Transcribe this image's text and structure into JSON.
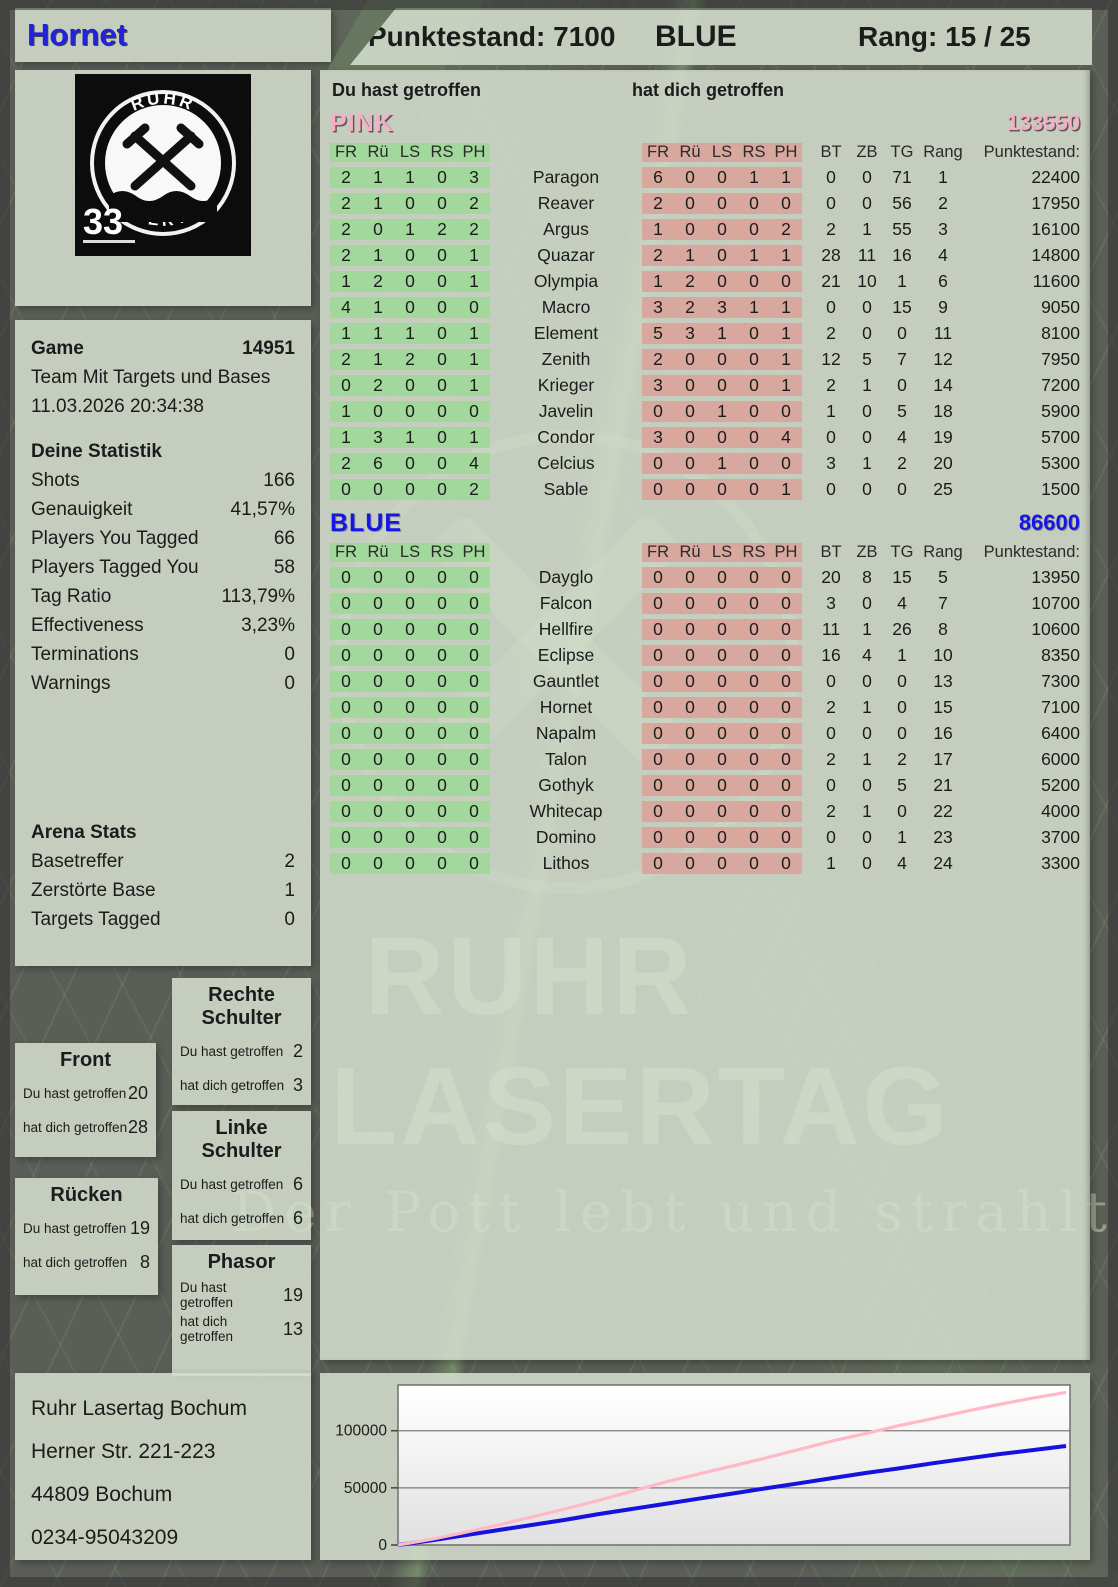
{
  "header": {
    "player": "Hornet",
    "points_label": "Punktestand: 7100",
    "team": "BLUE",
    "rank_label": "Rang: 15 / 25"
  },
  "logo": {
    "arc_top": "RUHR",
    "arc_bottom": "LASERTAG",
    "badge": "33"
  },
  "game": {
    "label": "Game",
    "number": "14951",
    "mode": "Team Mit Targets und Bases",
    "datetime": "11.03.2026 20:34:38"
  },
  "stats": {
    "title": "Deine Statistik",
    "rows": [
      {
        "label": "Shots",
        "value": "166"
      },
      {
        "label": "Genauigkeit",
        "value": "41,57%"
      },
      {
        "label": "Players You Tagged",
        "value": "66"
      },
      {
        "label": "Players Tagged You",
        "value": "58"
      },
      {
        "label": "Tag Ratio",
        "value": "113,79%"
      },
      {
        "label": "Effectiveness",
        "value": "3,23%"
      },
      {
        "label": "Terminations",
        "value": "0"
      },
      {
        "label": "Warnings",
        "value": "0"
      }
    ]
  },
  "arena": {
    "title": "Arena Stats",
    "rows": [
      {
        "label": "Basetreffer",
        "value": "2"
      },
      {
        "label": "Zerstörte Base",
        "value": "1"
      },
      {
        "label": "Targets Tagged",
        "value": "0"
      }
    ]
  },
  "bodypart_labels": {
    "hit": "Du hast getroffen",
    "got": "hat dich getroffen"
  },
  "bodyparts": [
    {
      "title": "Front",
      "hit": "20",
      "got": "28"
    },
    {
      "title": "Rücken",
      "hit": "19",
      "got": "8"
    },
    {
      "title": "Rechte Schulter",
      "hit": "2",
      "got": "3"
    },
    {
      "title": "Linke Schulter",
      "hit": "6",
      "got": "6"
    },
    {
      "title": "Phasor",
      "hit": "19",
      "got": "13"
    }
  ],
  "address": [
    "Ruhr Lasertag Bochum",
    "Herner Str. 221-223",
    "44809 Bochum",
    "0234-95043209"
  ],
  "table": {
    "caption_hit": "Du hast getroffen",
    "caption_got": "hat dich getroffen",
    "col_headers": [
      "FR",
      "Rü",
      "LS",
      "RS",
      "PH"
    ],
    "right_headers": [
      "BT",
      "ZB",
      "TG",
      "Rang",
      "Punktestand:"
    ],
    "teams": [
      {
        "name": "PINK",
        "total": "133550",
        "color_class": "pinkc",
        "rows": [
          {
            "you": [
              2,
              1,
              1,
              0,
              3
            ],
            "name": "Paragon",
            "them": [
              6,
              0,
              0,
              1,
              1
            ],
            "bt": 0,
            "zb": 0,
            "tg": 71,
            "rang": 1,
            "punkte": "22400"
          },
          {
            "you": [
              2,
              1,
              0,
              0,
              2
            ],
            "name": "Reaver",
            "them": [
              2,
              0,
              0,
              0,
              0
            ],
            "bt": 0,
            "zb": 0,
            "tg": 56,
            "rang": 2,
            "punkte": "17950"
          },
          {
            "you": [
              2,
              0,
              1,
              2,
              2
            ],
            "name": "Argus",
            "them": [
              1,
              0,
              0,
              0,
              2
            ],
            "bt": 2,
            "zb": 1,
            "tg": 55,
            "rang": 3,
            "punkte": "16100"
          },
          {
            "you": [
              2,
              1,
              0,
              0,
              1
            ],
            "name": "Quazar",
            "them": [
              2,
              1,
              0,
              1,
              1
            ],
            "bt": 28,
            "zb": 11,
            "tg": 16,
            "rang": 4,
            "punkte": "14800"
          },
          {
            "you": [
              1,
              2,
              0,
              0,
              1
            ],
            "name": "Olympia",
            "them": [
              1,
              2,
              0,
              0,
              0
            ],
            "bt": 21,
            "zb": 10,
            "tg": 1,
            "rang": 6,
            "punkte": "11600"
          },
          {
            "you": [
              4,
              1,
              0,
              0,
              0
            ],
            "name": "Macro",
            "them": [
              3,
              2,
              3,
              1,
              1
            ],
            "bt": 0,
            "zb": 0,
            "tg": 15,
            "rang": 9,
            "punkte": "9050"
          },
          {
            "you": [
              1,
              1,
              1,
              0,
              1
            ],
            "name": "Element",
            "them": [
              5,
              3,
              1,
              0,
              1
            ],
            "bt": 2,
            "zb": 0,
            "tg": 0,
            "rang": 11,
            "punkte": "8100"
          },
          {
            "you": [
              2,
              1,
              2,
              0,
              1
            ],
            "name": "Zenith",
            "them": [
              2,
              0,
              0,
              0,
              1
            ],
            "bt": 12,
            "zb": 5,
            "tg": 7,
            "rang": 12,
            "punkte": "7950"
          },
          {
            "you": [
              0,
              2,
              0,
              0,
              1
            ],
            "name": "Krieger",
            "them": [
              3,
              0,
              0,
              0,
              1
            ],
            "bt": 2,
            "zb": 1,
            "tg": 0,
            "rang": 14,
            "punkte": "7200"
          },
          {
            "you": [
              1,
              0,
              0,
              0,
              0
            ],
            "name": "Javelin",
            "them": [
              0,
              0,
              1,
              0,
              0
            ],
            "bt": 1,
            "zb": 0,
            "tg": 5,
            "rang": 18,
            "punkte": "5900"
          },
          {
            "you": [
              1,
              3,
              1,
              0,
              1
            ],
            "name": "Condor",
            "them": [
              3,
              0,
              0,
              0,
              4
            ],
            "bt": 0,
            "zb": 0,
            "tg": 4,
            "rang": 19,
            "punkte": "5700"
          },
          {
            "you": [
              2,
              6,
              0,
              0,
              4
            ],
            "name": "Celcius",
            "them": [
              0,
              0,
              1,
              0,
              0
            ],
            "bt": 3,
            "zb": 1,
            "tg": 2,
            "rang": 20,
            "punkte": "5300"
          },
          {
            "you": [
              0,
              0,
              0,
              0,
              2
            ],
            "name": "Sable",
            "them": [
              0,
              0,
              0,
              0,
              1
            ],
            "bt": 0,
            "zb": 0,
            "tg": 0,
            "rang": 25,
            "punkte": "1500"
          }
        ]
      },
      {
        "name": "BLUE",
        "total": "86600",
        "color_class": "bluec",
        "rows": [
          {
            "you": [
              0,
              0,
              0,
              0,
              0
            ],
            "name": "Dayglo",
            "them": [
              0,
              0,
              0,
              0,
              0
            ],
            "bt": 20,
            "zb": 8,
            "tg": 15,
            "rang": 5,
            "punkte": "13950"
          },
          {
            "you": [
              0,
              0,
              0,
              0,
              0
            ],
            "name": "Falcon",
            "them": [
              0,
              0,
              0,
              0,
              0
            ],
            "bt": 3,
            "zb": 0,
            "tg": 4,
            "rang": 7,
            "punkte": "10700"
          },
          {
            "you": [
              0,
              0,
              0,
              0,
              0
            ],
            "name": "Hellfire",
            "them": [
              0,
              0,
              0,
              0,
              0
            ],
            "bt": 11,
            "zb": 1,
            "tg": 26,
            "rang": 8,
            "punkte": "10600"
          },
          {
            "you": [
              0,
              0,
              0,
              0,
              0
            ],
            "name": "Eclipse",
            "them": [
              0,
              0,
              0,
              0,
              0
            ],
            "bt": 16,
            "zb": 4,
            "tg": 1,
            "rang": 10,
            "punkte": "8350"
          },
          {
            "you": [
              0,
              0,
              0,
              0,
              0
            ],
            "name": "Gauntlet",
            "them": [
              0,
              0,
              0,
              0,
              0
            ],
            "bt": 0,
            "zb": 0,
            "tg": 0,
            "rang": 13,
            "punkte": "7300"
          },
          {
            "you": [
              0,
              0,
              0,
              0,
              0
            ],
            "name": "Hornet",
            "them": [
              0,
              0,
              0,
              0,
              0
            ],
            "bt": 2,
            "zb": 1,
            "tg": 0,
            "rang": 15,
            "punkte": "7100"
          },
          {
            "you": [
              0,
              0,
              0,
              0,
              0
            ],
            "name": "Napalm",
            "them": [
              0,
              0,
              0,
              0,
              0
            ],
            "bt": 0,
            "zb": 0,
            "tg": 0,
            "rang": 16,
            "punkte": "6400"
          },
          {
            "you": [
              0,
              0,
              0,
              0,
              0
            ],
            "name": "Talon",
            "them": [
              0,
              0,
              0,
              0,
              0
            ],
            "bt": 2,
            "zb": 1,
            "tg": 2,
            "rang": 17,
            "punkte": "6000"
          },
          {
            "you": [
              0,
              0,
              0,
              0,
              0
            ],
            "name": "Gothyk",
            "them": [
              0,
              0,
              0,
              0,
              0
            ],
            "bt": 0,
            "zb": 0,
            "tg": 5,
            "rang": 21,
            "punkte": "5200"
          },
          {
            "you": [
              0,
              0,
              0,
              0,
              0
            ],
            "name": "Whitecap",
            "them": [
              0,
              0,
              0,
              0,
              0
            ],
            "bt": 2,
            "zb": 1,
            "tg": 0,
            "rang": 22,
            "punkte": "4000"
          },
          {
            "you": [
              0,
              0,
              0,
              0,
              0
            ],
            "name": "Domino",
            "them": [
              0,
              0,
              0,
              0,
              0
            ],
            "bt": 0,
            "zb": 0,
            "tg": 1,
            "rang": 23,
            "punkte": "3700"
          },
          {
            "you": [
              0,
              0,
              0,
              0,
              0
            ],
            "name": "Lithos",
            "them": [
              0,
              0,
              0,
              0,
              0
            ],
            "bt": 1,
            "zb": 0,
            "tg": 4,
            "rang": 24,
            "punkte": "3300"
          }
        ]
      }
    ]
  },
  "watermark": {
    "line1": "RUHR",
    "line2": "LASERTAG",
    "slogan": "Der Pott lebt und strahlt"
  },
  "chart_data": {
    "type": "line",
    "title": "",
    "xlabel": "",
    "ylabel": "",
    "ylim": [
      0,
      140000
    ],
    "yticks": [
      0,
      50000,
      100000
    ],
    "grid": true,
    "legend": "none",
    "series": [
      {
        "name": "PINK",
        "color": "#ffb9c6",
        "final": 133550,
        "values": [
          0,
          5000,
          11000,
          17500,
          24500,
          31500,
          39000,
          47000,
          55000,
          62000,
          69000,
          76000,
          83500,
          91000,
          97500,
          104500,
          110500,
          117000,
          123000,
          128500,
          133550
        ]
      },
      {
        "name": "BLUE",
        "color": "#1512dd",
        "final": 86600,
        "values": [
          0,
          4000,
          8500,
          13000,
          17500,
          22000,
          27000,
          31500,
          36000,
          40500,
          45000,
          49500,
          54000,
          58500,
          63000,
          67000,
          71500,
          75500,
          79500,
          83000,
          86600
        ]
      }
    ]
  }
}
